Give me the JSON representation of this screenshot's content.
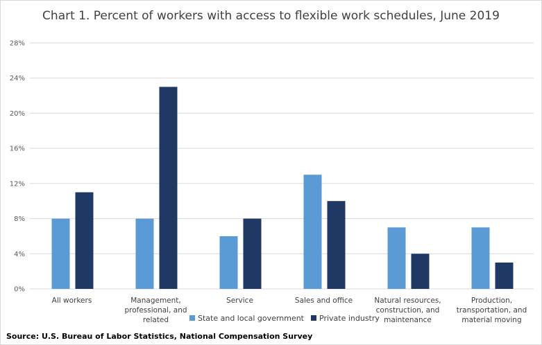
{
  "chart_data": {
    "type": "bar",
    "title": "Chart 1. Percent of workers with access to flexible work schedules, June 2019",
    "categories": [
      [
        "All workers"
      ],
      [
        "Management,",
        "professional, and",
        "related"
      ],
      [
        "Service"
      ],
      [
        "Sales and office"
      ],
      [
        "Natural resources,",
        "construction, and",
        "maintenance"
      ],
      [
        "Production,",
        "transportation, and",
        "material moving"
      ]
    ],
    "series": [
      {
        "name": "State and local government",
        "color": "#5b9bd5",
        "values": [
          8,
          8,
          6,
          13,
          7,
          7
        ]
      },
      {
        "name": "Private industry",
        "color": "#1f3864",
        "values": [
          11,
          23,
          8,
          10,
          4,
          3
        ]
      }
    ],
    "ylim": [
      0,
      28
    ],
    "yticks": [
      0,
      4,
      8,
      12,
      16,
      20,
      24,
      28
    ],
    "ytick_format": "%",
    "grid": true,
    "legend": "bottom",
    "source": "Source: U.S. Bureau of Labor Statistics, National Compensation Survey"
  }
}
